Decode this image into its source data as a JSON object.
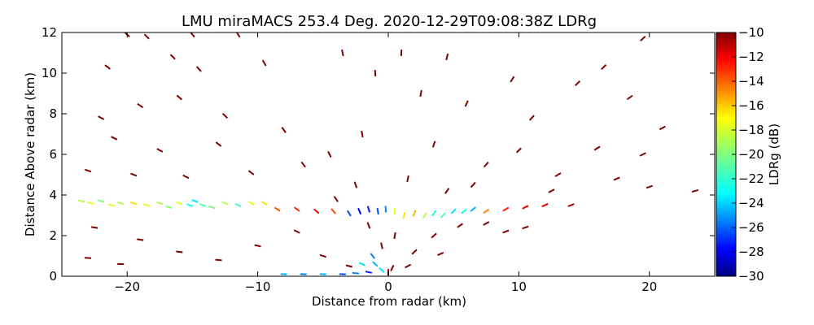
{
  "chart_data": {
    "type": "scatter",
    "subtype": "radar-rhi-scan",
    "title": "LMU miraMACS 253.4 Deg. 2020-12-29T09:08:38Z  LDRg",
    "xlabel": "Distance from radar (km)",
    "ylabel": "Distance Above radar  (km)",
    "xlim": [
      -25,
      25
    ],
    "ylim": [
      0,
      12
    ],
    "xticks": [
      -20,
      -10,
      0,
      10,
      20
    ],
    "xtick_labels": [
      "−20",
      "−10",
      "0",
      "10",
      "20"
    ],
    "yticks": [
      0,
      2,
      4,
      6,
      8,
      10,
      12
    ],
    "ytick_labels": [
      "0",
      "2",
      "4",
      "6",
      "8",
      "10",
      "12"
    ],
    "colorbar": {
      "label": "LDRg (dB)",
      "colormap": "jet",
      "range": [
        -30,
        -10
      ],
      "ticks": [
        -30,
        -28,
        -26,
        -24,
        -22,
        -20,
        -18,
        -16,
        -14,
        -12,
        -10
      ],
      "tick_labels": [
        "−30",
        "−28",
        "−26",
        "−24",
        "−22",
        "−20",
        "−18",
        "−16",
        "−14",
        "−12",
        "−10"
      ]
    },
    "series": [
      {
        "name": "melting layer band (x km, height km, LDRg dB)",
        "points": [
          [
            -23.5,
            3.7,
            -19
          ],
          [
            -22.8,
            3.6,
            -18
          ],
          [
            -22.0,
            3.7,
            -20
          ],
          [
            -21.2,
            3.5,
            -18
          ],
          [
            -20.5,
            3.6,
            -19
          ],
          [
            -19.5,
            3.6,
            -17
          ],
          [
            -18.5,
            3.5,
            -18
          ],
          [
            -17.5,
            3.6,
            -19
          ],
          [
            -16.8,
            3.4,
            -20
          ],
          [
            -16.0,
            3.6,
            -18
          ],
          [
            -15.2,
            3.5,
            -22
          ],
          [
            -14.8,
            3.7,
            -23
          ],
          [
            -14.2,
            3.5,
            -21
          ],
          [
            -13.5,
            3.4,
            -20
          ],
          [
            -12.5,
            3.6,
            -19
          ],
          [
            -11.5,
            3.5,
            -21
          ],
          [
            -10.5,
            3.6,
            -18
          ],
          [
            -9.5,
            3.6,
            -17
          ],
          [
            -8.5,
            3.3,
            -14
          ],
          [
            -7.0,
            3.3,
            -13
          ],
          [
            -5.5,
            3.2,
            -12
          ],
          [
            -4.2,
            3.2,
            -14
          ],
          [
            -3.0,
            3.1,
            -26
          ],
          [
            -2.2,
            3.2,
            -28
          ],
          [
            -1.5,
            3.3,
            -27
          ],
          [
            -0.8,
            3.2,
            -26
          ],
          [
            -0.2,
            3.3,
            -25
          ],
          [
            0.5,
            3.2,
            -18
          ],
          [
            1.2,
            3.0,
            -17
          ],
          [
            2.0,
            3.1,
            -16
          ],
          [
            2.8,
            3.0,
            -19
          ],
          [
            3.5,
            3.1,
            -22
          ],
          [
            4.2,
            3.0,
            -21
          ],
          [
            5.0,
            3.2,
            -23
          ],
          [
            5.8,
            3.2,
            -22
          ],
          [
            6.5,
            3.3,
            -24
          ],
          [
            7.5,
            3.2,
            -15
          ],
          [
            9.0,
            3.3,
            -13
          ],
          [
            10.5,
            3.4,
            -12
          ],
          [
            12.0,
            3.5,
            -12
          ],
          [
            14.0,
            3.5,
            -11
          ]
        ]
      },
      {
        "name": "near-surface echoes (x km, height km, LDRg dB)",
        "points": [
          [
            -8.0,
            0.1,
            -24
          ],
          [
            -6.5,
            0.1,
            -25
          ],
          [
            -5.0,
            0.1,
            -24
          ],
          [
            -3.5,
            0.1,
            -26
          ],
          [
            -2.5,
            0.15,
            -25
          ],
          [
            -1.5,
            0.2,
            -27
          ],
          [
            -1.0,
            0.6,
            -24
          ],
          [
            -0.5,
            0.3,
            -23
          ],
          [
            0.0,
            0.2,
            -11
          ],
          [
            0.3,
            0.4,
            -10
          ],
          [
            -2.0,
            0.6,
            -23
          ],
          [
            -1.2,
            1.0,
            -25
          ]
        ]
      },
      {
        "name": "sparse scatter aloft (x km, height km, LDRg dB)",
        "points": [
          [
            -20.0,
            11.9,
            -10
          ],
          [
            -18.5,
            11.8,
            -10
          ],
          [
            -15.0,
            11.9,
            -10
          ],
          [
            -11.5,
            11.9,
            -10
          ],
          [
            -21.5,
            10.3,
            -10
          ],
          [
            -16.5,
            10.8,
            -10
          ],
          [
            -14.5,
            10.2,
            -10
          ],
          [
            -9.5,
            10.5,
            -10
          ],
          [
            -22.0,
            7.8,
            -10
          ],
          [
            -19.0,
            8.4,
            -10
          ],
          [
            -16.0,
            8.8,
            -10
          ],
          [
            -12.5,
            7.9,
            -10
          ],
          [
            -21.0,
            6.8,
            -10
          ],
          [
            -17.5,
            6.2,
            -10
          ],
          [
            -13.0,
            6.5,
            -10
          ],
          [
            -8.0,
            7.2,
            -10
          ],
          [
            -23.0,
            5.2,
            -10
          ],
          [
            -19.5,
            5.0,
            -10
          ],
          [
            -15.5,
            4.9,
            -10
          ],
          [
            -10.5,
            5.1,
            -10
          ],
          [
            -6.5,
            5.5,
            -10
          ],
          [
            -4.5,
            6.0,
            -10
          ],
          [
            -2.0,
            7.0,
            -10
          ],
          [
            -3.5,
            11.0,
            -10
          ],
          [
            -1.0,
            10.0,
            -10
          ],
          [
            1.0,
            11.0,
            -10
          ],
          [
            2.5,
            9.0,
            -10
          ],
          [
            4.5,
            10.8,
            -10
          ],
          [
            6.0,
            8.5,
            -10
          ],
          [
            9.5,
            9.7,
            -10
          ],
          [
            11.0,
            7.8,
            -10
          ],
          [
            14.5,
            9.5,
            -10
          ],
          [
            16.5,
            10.3,
            -10
          ],
          [
            19.5,
            11.7,
            -10
          ],
          [
            18.5,
            8.8,
            -10
          ],
          [
            21.0,
            7.3,
            -10
          ],
          [
            3.5,
            6.5,
            -10
          ],
          [
            7.5,
            5.5,
            -10
          ],
          [
            10.0,
            6.2,
            -10
          ],
          [
            13.0,
            5.0,
            -10
          ],
          [
            16.0,
            6.3,
            -10
          ],
          [
            19.5,
            6.0,
            -10
          ],
          [
            12.5,
            4.2,
            -10
          ],
          [
            17.5,
            4.8,
            -10
          ],
          [
            20.0,
            4.4,
            -10
          ],
          [
            23.5,
            4.2,
            -10
          ],
          [
            -22.5,
            2.4,
            -10
          ],
          [
            -19.0,
            1.8,
            -10
          ],
          [
            -16.0,
            1.2,
            -10
          ],
          [
            -13.0,
            0.8,
            -10
          ],
          [
            -20.5,
            0.6,
            -10
          ],
          [
            -23.0,
            0.9,
            -10
          ],
          [
            -10.0,
            1.5,
            -10
          ],
          [
            -7.0,
            2.2,
            -10
          ],
          [
            -5.0,
            1.0,
            -10
          ],
          [
            -3.0,
            0.5,
            -10
          ],
          [
            2.0,
            1.2,
            -10
          ],
          [
            3.5,
            2.0,
            -10
          ],
          [
            5.5,
            2.5,
            -10
          ],
          [
            7.5,
            2.6,
            -10
          ],
          [
            9.0,
            2.2,
            -10
          ],
          [
            10.5,
            2.4,
            -10
          ],
          [
            1.5,
            0.5,
            -10
          ],
          [
            4.0,
            1.1,
            -10
          ],
          [
            -0.5,
            1.5,
            -10
          ],
          [
            0.5,
            2.0,
            -10
          ],
          [
            -1.5,
            2.5,
            -10
          ],
          [
            -4.0,
            3.8,
            -10
          ],
          [
            -2.5,
            4.5,
            -10
          ],
          [
            1.5,
            4.8,
            -10
          ],
          [
            4.5,
            4.2,
            -10
          ],
          [
            6.5,
            4.5,
            -10
          ]
        ]
      }
    ]
  }
}
